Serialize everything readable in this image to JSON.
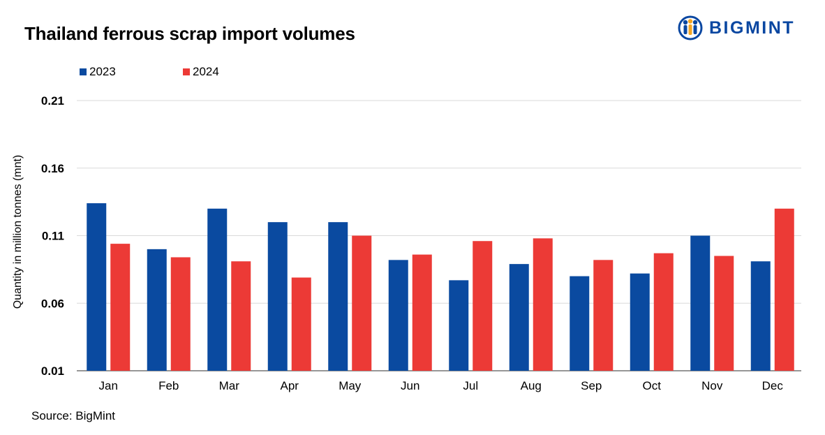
{
  "title": "Thailand ferrous scrap import volumes",
  "logo": {
    "text": "BIGMINT",
    "icon": "bigmint-people-icon"
  },
  "source": "Source: BigMint",
  "colors": {
    "series_2023": "#0a4aa0",
    "series_2024": "#ec3a36",
    "grid": "#d9d9d9",
    "axis": "#595959"
  },
  "chart_data": {
    "type": "bar",
    "title": "Thailand ferrous scrap import volumes",
    "xlabel": "",
    "ylabel": "Quantity in million tonnes (mnt)",
    "ylim": [
      0.01,
      0.21
    ],
    "yticks": [
      0.01,
      0.06,
      0.11,
      0.16,
      0.21
    ],
    "ytick_labels": [
      "0.01",
      "0.06",
      "0.11",
      "0.16",
      "0.21"
    ],
    "legend_position": "top-left",
    "grid": true,
    "categories": [
      "Jan",
      "Feb",
      "Mar",
      "Apr",
      "May",
      "Jun",
      "Jul",
      "Aug",
      "Sep",
      "Oct",
      "Nov",
      "Dec"
    ],
    "series": [
      {
        "name": "2023",
        "values": [
          0.134,
          0.1,
          0.13,
          0.12,
          0.12,
          0.092,
          0.077,
          0.089,
          0.08,
          0.082,
          0.11,
          0.091
        ]
      },
      {
        "name": "2024",
        "values": [
          0.104,
          0.094,
          0.091,
          0.079,
          0.11,
          0.096,
          0.106,
          0.108,
          0.092,
          0.097,
          0.095,
          0.13
        ]
      }
    ]
  }
}
